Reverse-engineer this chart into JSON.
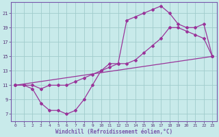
{
  "xlabel": "Windchill (Refroidissement éolien,°C)",
  "bg_color": "#c8eaea",
  "grid_color": "#a0cccc",
  "line_color": "#993399",
  "spine_color": "#7755aa",
  "markersize": 2.0,
  "linewidth": 0.9,
  "xlim": [
    -0.5,
    23.5
  ],
  "ylim": [
    6.0,
    22.5
  ],
  "xticks": [
    0,
    1,
    2,
    3,
    4,
    5,
    6,
    7,
    8,
    9,
    10,
    11,
    12,
    13,
    14,
    15,
    16,
    17,
    18,
    19,
    20,
    21,
    22,
    23
  ],
  "yticks": [
    7,
    9,
    11,
    13,
    15,
    17,
    19,
    21
  ],
  "line1_x": [
    0,
    1,
    2,
    3,
    4,
    5,
    6,
    7,
    8,
    9,
    10,
    11,
    12,
    13,
    14,
    15,
    16,
    17,
    18,
    19,
    20,
    21,
    22,
    23
  ],
  "line1_y": [
    11,
    11,
    10.5,
    8.5,
    7.5,
    7.5,
    7.0,
    7.5,
    9.0,
    11,
    13,
    14,
    14,
    20,
    20.5,
    21,
    21.5,
    22,
    21,
    19.5,
    19,
    19,
    19.5,
    15
  ],
  "line2_x": [
    0,
    1,
    2,
    3,
    4,
    5,
    6,
    7,
    8,
    9,
    10,
    11,
    12,
    13,
    14,
    15,
    16,
    17,
    18,
    19,
    20,
    21,
    22,
    23
  ],
  "line2_y": [
    11,
    11,
    11,
    10.5,
    11,
    11,
    11,
    11.5,
    12,
    12.5,
    13,
    13.5,
    14,
    14,
    14.5,
    15.5,
    16.5,
    17.5,
    19,
    19,
    18.5,
    18,
    17.5,
    15
  ],
  "line3_x": [
    0,
    23
  ],
  "line3_y": [
    11,
    15
  ],
  "xlabel_color": "#7755aa",
  "xlabel_fontsize": 5.5,
  "tick_fontsize": 4.5,
  "tick_color": "#553377"
}
